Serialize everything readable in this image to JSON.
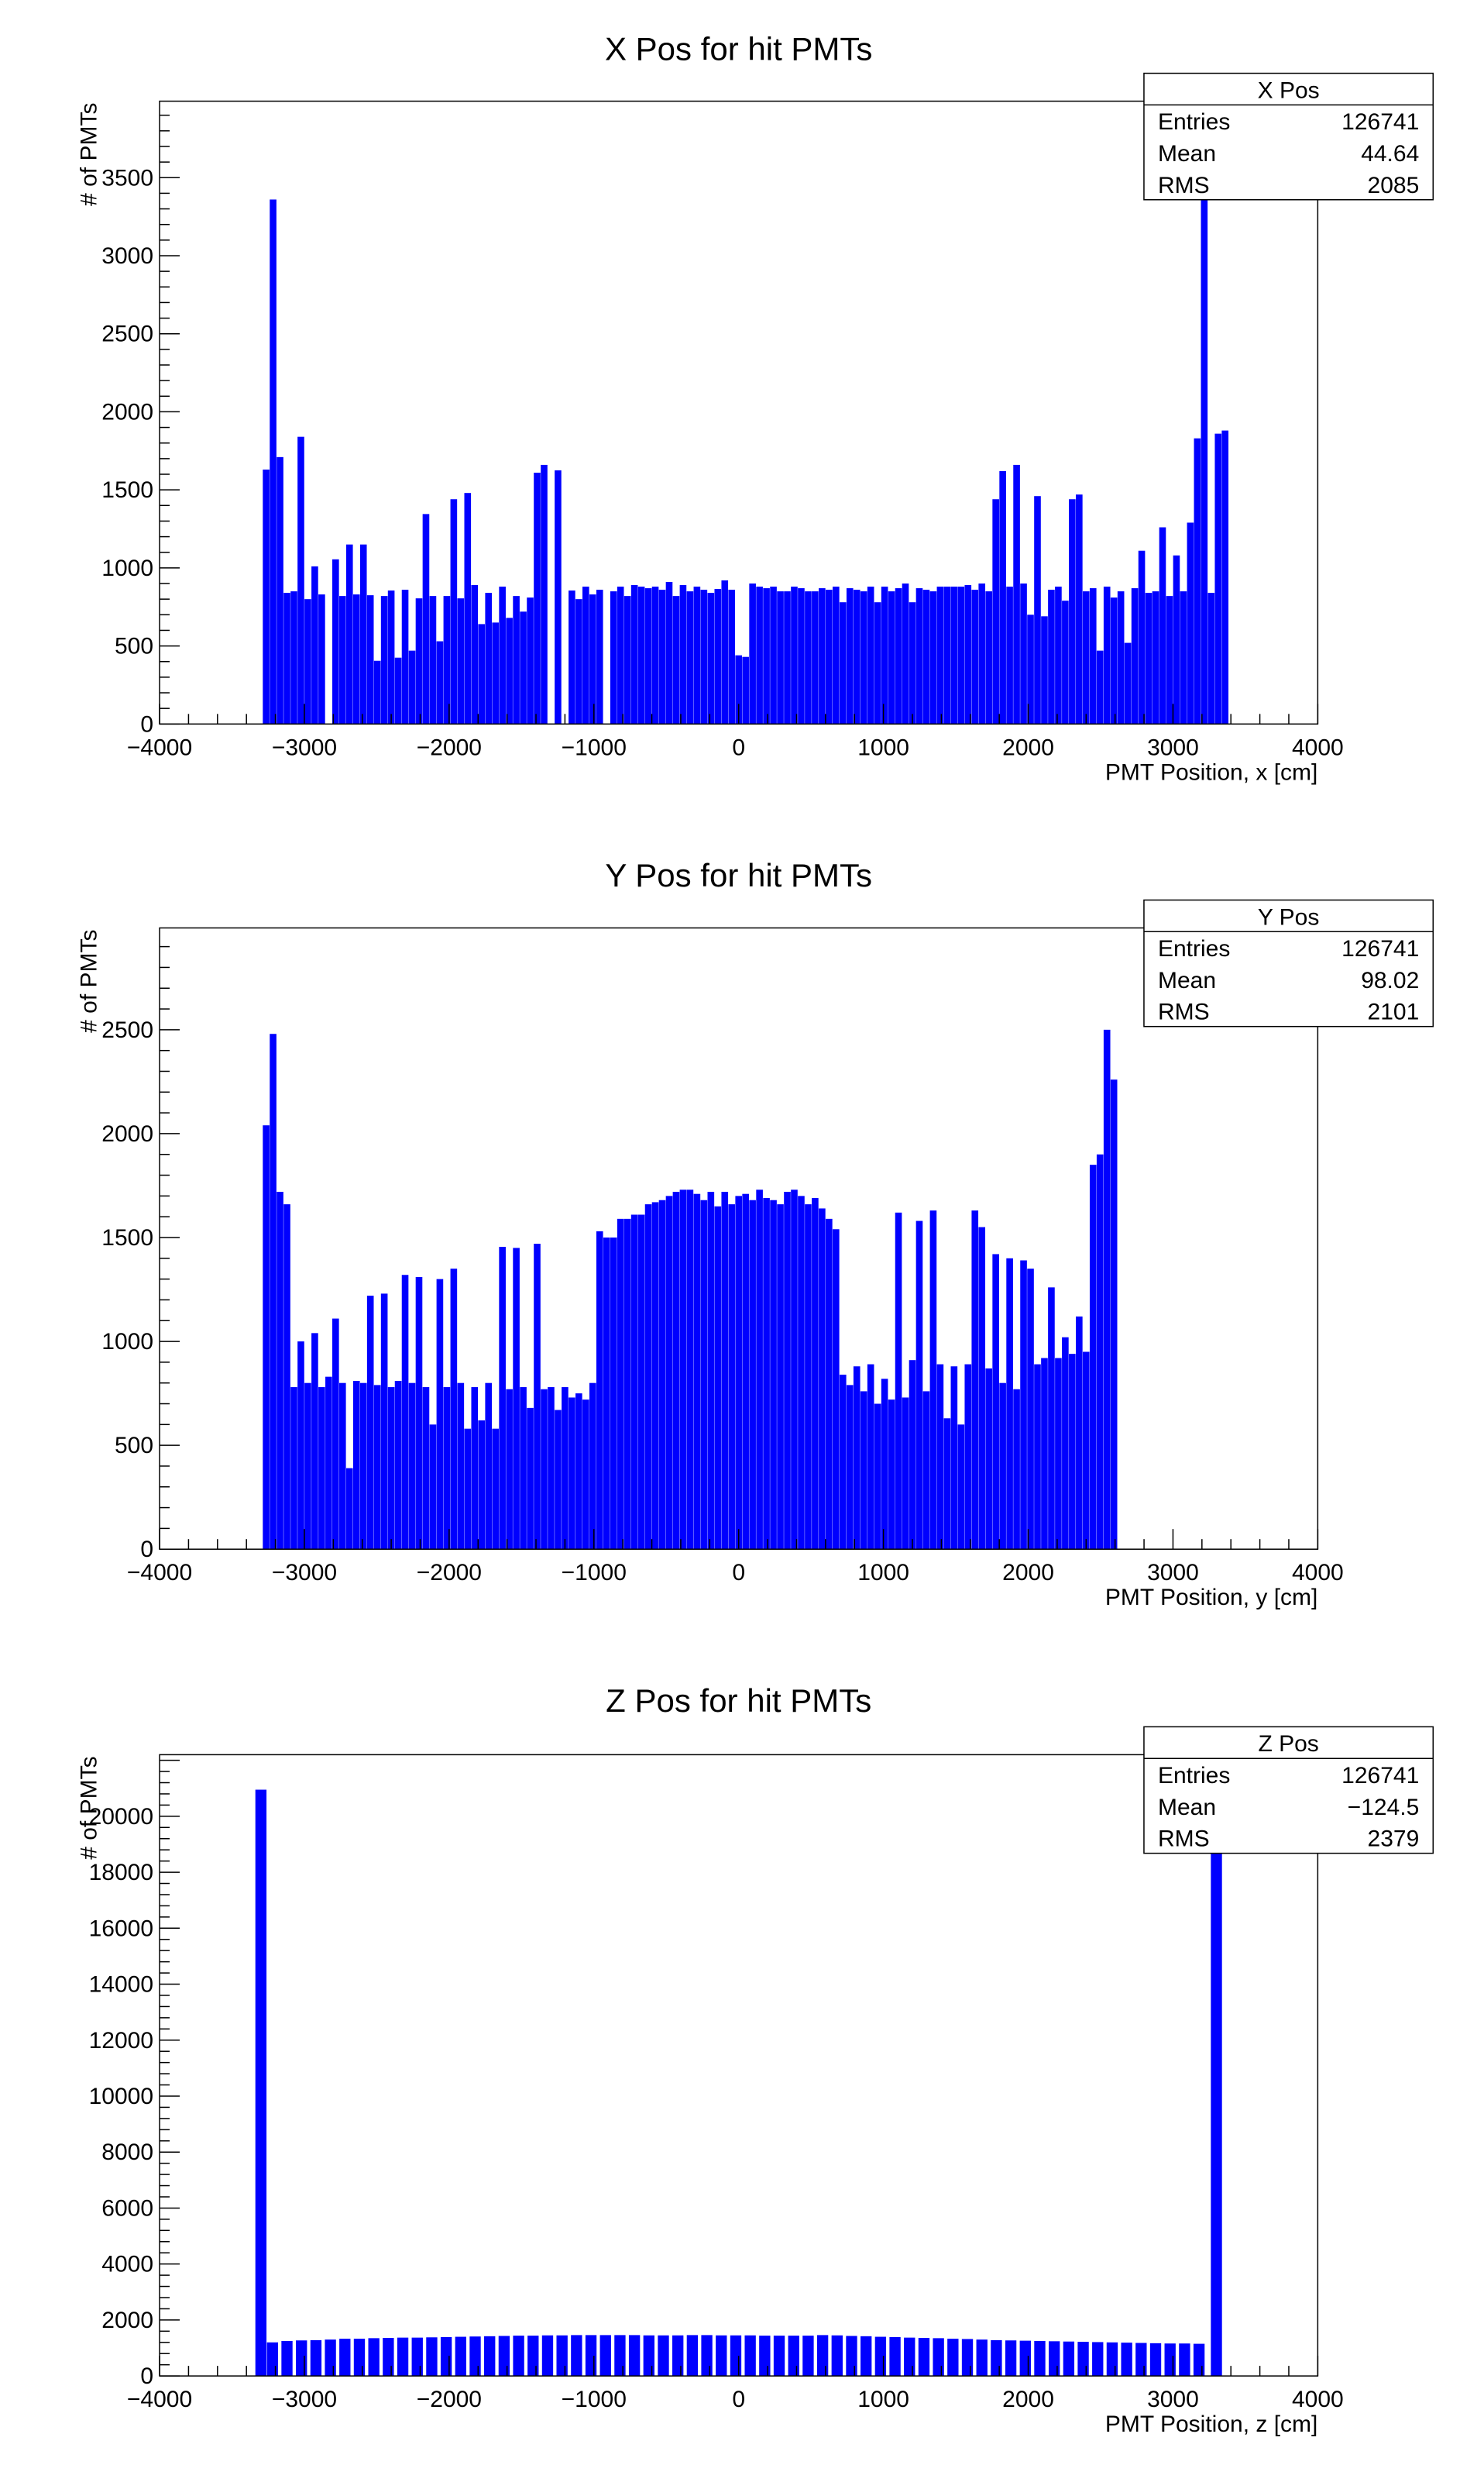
{
  "chart_data": [
    {
      "type": "bar",
      "title": "X Pos for hit PMTs",
      "xlabel": "PMT Position, x [cm]",
      "ylabel": "# of PMTs",
      "xlim": [
        -4000,
        4000
      ],
      "ylim": [
        0,
        3990
      ],
      "xticks": [
        -4000,
        -3000,
        -2000,
        -1000,
        0,
        1000,
        2000,
        3000,
        4000
      ],
      "yticks": [
        0,
        500,
        1000,
        1500,
        2000,
        2500,
        3000,
        3500
      ],
      "color": "#0000ff",
      "stats": {
        "name": "X Pos",
        "entries": "126741",
        "mean": "44.64",
        "rms": "2085"
      },
      "bins": [
        [
          -3264,
          1630
        ],
        [
          -3216,
          3360
        ],
        [
          -3168,
          1710
        ],
        [
          -3120,
          840
        ],
        [
          -3072,
          850
        ],
        [
          -3024,
          1840
        ],
        [
          -2976,
          800
        ],
        [
          -2928,
          1010
        ],
        [
          -2880,
          830
        ],
        [
          -2784,
          1055
        ],
        [
          -2736,
          820
        ],
        [
          -2688,
          1150
        ],
        [
          -2640,
          830
        ],
        [
          -2592,
          1150
        ],
        [
          -2544,
          825
        ],
        [
          -2496,
          405
        ],
        [
          -2448,
          820
        ],
        [
          -2400,
          855
        ],
        [
          -2352,
          425
        ],
        [
          -2304,
          860
        ],
        [
          -2256,
          470
        ],
        [
          -2208,
          805
        ],
        [
          -2160,
          1345
        ],
        [
          -2112,
          820
        ],
        [
          -2064,
          530
        ],
        [
          -2016,
          820
        ],
        [
          -1968,
          1440
        ],
        [
          -1920,
          805
        ],
        [
          -1872,
          1480
        ],
        [
          -1824,
          890
        ],
        [
          -1776,
          640
        ],
        [
          -1728,
          840
        ],
        [
          -1680,
          650
        ],
        [
          -1632,
          880
        ],
        [
          -1584,
          680
        ],
        [
          -1536,
          820
        ],
        [
          -1488,
          720
        ],
        [
          -1440,
          810
        ],
        [
          -1392,
          1610
        ],
        [
          -1344,
          1660
        ],
        [
          -1248,
          1625
        ],
        [
          -1152,
          855
        ],
        [
          -1104,
          800
        ],
        [
          -1056,
          880
        ],
        [
          -1008,
          830
        ],
        [
          -960,
          860
        ],
        [
          -864,
          850
        ],
        [
          -816,
          880
        ],
        [
          -768,
          820
        ],
        [
          -720,
          890
        ],
        [
          -672,
          880
        ],
        [
          -624,
          870
        ],
        [
          -576,
          880
        ],
        [
          -528,
          860
        ],
        [
          -480,
          910
        ],
        [
          -432,
          820
        ],
        [
          -384,
          890
        ],
        [
          -336,
          850
        ],
        [
          -288,
          880
        ],
        [
          -240,
          860
        ],
        [
          -192,
          840
        ],
        [
          -144,
          865
        ],
        [
          -96,
          920
        ],
        [
          -48,
          860
        ],
        [
          0,
          440
        ],
        [
          48,
          430
        ],
        [
          96,
          900
        ],
        [
          144,
          880
        ],
        [
          192,
          870
        ],
        [
          240,
          880
        ],
        [
          288,
          850
        ],
        [
          336,
          850
        ],
        [
          384,
          880
        ],
        [
          432,
          870
        ],
        [
          480,
          850
        ],
        [
          528,
          850
        ],
        [
          576,
          870
        ],
        [
          624,
          860
        ],
        [
          672,
          880
        ],
        [
          720,
          780
        ],
        [
          768,
          870
        ],
        [
          816,
          860
        ],
        [
          864,
          850
        ],
        [
          912,
          880
        ],
        [
          960,
          780
        ],
        [
          1008,
          880
        ],
        [
          1056,
          850
        ],
        [
          1104,
          870
        ],
        [
          1152,
          900
        ],
        [
          1200,
          780
        ],
        [
          1248,
          870
        ],
        [
          1296,
          860
        ],
        [
          1344,
          850
        ],
        [
          1392,
          880
        ],
        [
          1440,
          880
        ],
        [
          1488,
          880
        ],
        [
          1536,
          880
        ],
        [
          1584,
          890
        ],
        [
          1632,
          860
        ],
        [
          1680,
          900
        ],
        [
          1728,
          850
        ],
        [
          1776,
          1440
        ],
        [
          1824,
          1620
        ],
        [
          1872,
          880
        ],
        [
          1920,
          1660
        ],
        [
          1968,
          900
        ],
        [
          2016,
          700
        ],
        [
          2064,
          1460
        ],
        [
          2112,
          690
        ],
        [
          2160,
          860
        ],
        [
          2208,
          880
        ],
        [
          2256,
          790
        ],
        [
          2304,
          1440
        ],
        [
          2352,
          1470
        ],
        [
          2400,
          850
        ],
        [
          2448,
          870
        ],
        [
          2496,
          470
        ],
        [
          2544,
          880
        ],
        [
          2592,
          810
        ],
        [
          2640,
          850
        ],
        [
          2688,
          520
        ],
        [
          2736,
          870
        ],
        [
          2784,
          1110
        ],
        [
          2832,
          840
        ],
        [
          2880,
          850
        ],
        [
          2928,
          1260
        ],
        [
          2976,
          820
        ],
        [
          3024,
          1080
        ],
        [
          3072,
          850
        ],
        [
          3120,
          1290
        ],
        [
          3168,
          1830
        ],
        [
          3216,
          3380
        ],
        [
          3264,
          840
        ],
        [
          3312,
          1860
        ],
        [
          3360,
          1880
        ]
      ]
    },
    {
      "type": "bar",
      "title": "Y Pos for hit PMTs",
      "xlabel": "PMT Position, y [cm]",
      "ylabel": "# of PMTs",
      "xlim": [
        -4000,
        4000
      ],
      "ylim": [
        0,
        2990
      ],
      "xticks": [
        -4000,
        -3000,
        -2000,
        -1000,
        0,
        1000,
        2000,
        3000,
        4000
      ],
      "yticks": [
        0,
        500,
        1000,
        1500,
        2000,
        2500
      ],
      "color": "#0000ff",
      "stats": {
        "name": "Y Pos",
        "entries": "126741",
        "mean": "98.02",
        "rms": "2101"
      },
      "bins": [
        [
          -3264,
          2040
        ],
        [
          -3216,
          2480
        ],
        [
          -3168,
          1720
        ],
        [
          -3120,
          1660
        ],
        [
          -3072,
          780
        ],
        [
          -3024,
          1000
        ],
        [
          -2976,
          800
        ],
        [
          -2928,
          1040
        ],
        [
          -2880,
          780
        ],
        [
          -2832,
          830
        ],
        [
          -2784,
          1110
        ],
        [
          -2736,
          800
        ],
        [
          -2688,
          390
        ],
        [
          -2640,
          810
        ],
        [
          -2592,
          800
        ],
        [
          -2544,
          1220
        ],
        [
          -2496,
          790
        ],
        [
          -2448,
          1230
        ],
        [
          -2400,
          780
        ],
        [
          -2352,
          810
        ],
        [
          -2304,
          1320
        ],
        [
          -2256,
          800
        ],
        [
          -2208,
          1310
        ],
        [
          -2160,
          780
        ],
        [
          -2112,
          600
        ],
        [
          -2064,
          1300
        ],
        [
          -2016,
          780
        ],
        [
          -1968,
          1350
        ],
        [
          -1920,
          800
        ],
        [
          -1872,
          580
        ],
        [
          -1824,
          780
        ],
        [
          -1776,
          620
        ],
        [
          -1728,
          800
        ],
        [
          -1680,
          580
        ],
        [
          -1632,
          1455
        ],
        [
          -1584,
          770
        ],
        [
          -1536,
          1450
        ],
        [
          -1488,
          780
        ],
        [
          -1440,
          680
        ],
        [
          -1392,
          1470
        ],
        [
          -1344,
          770
        ],
        [
          -1296,
          780
        ],
        [
          -1248,
          670
        ],
        [
          -1200,
          780
        ],
        [
          -1152,
          730
        ],
        [
          -1104,
          750
        ],
        [
          -1056,
          720
        ],
        [
          -1008,
          800
        ],
        [
          -960,
          1530
        ],
        [
          -912,
          1500
        ],
        [
          -864,
          1500
        ],
        [
          -816,
          1590
        ],
        [
          -768,
          1590
        ],
        [
          -720,
          1610
        ],
        [
          -672,
          1610
        ],
        [
          -624,
          1660
        ],
        [
          -576,
          1670
        ],
        [
          -528,
          1680
        ],
        [
          -480,
          1700
        ],
        [
          -432,
          1720
        ],
        [
          -384,
          1730
        ],
        [
          -336,
          1730
        ],
        [
          -288,
          1710
        ],
        [
          -240,
          1680
        ],
        [
          -192,
          1720
        ],
        [
          -144,
          1650
        ],
        [
          -96,
          1720
        ],
        [
          -48,
          1660
        ],
        [
          0,
          1700
        ],
        [
          48,
          1710
        ],
        [
          96,
          1680
        ],
        [
          144,
          1730
        ],
        [
          192,
          1690
        ],
        [
          240,
          1680
        ],
        [
          288,
          1660
        ],
        [
          336,
          1720
        ],
        [
          384,
          1730
        ],
        [
          432,
          1700
        ],
        [
          480,
          1660
        ],
        [
          528,
          1690
        ],
        [
          576,
          1640
        ],
        [
          624,
          1590
        ],
        [
          672,
          1540
        ],
        [
          720,
          840
        ],
        [
          768,
          790
        ],
        [
          816,
          880
        ],
        [
          864,
          760
        ],
        [
          912,
          890
        ],
        [
          960,
          700
        ],
        [
          1008,
          820
        ],
        [
          1056,
          720
        ],
        [
          1104,
          1620
        ],
        [
          1152,
          730
        ],
        [
          1200,
          910
        ],
        [
          1248,
          1580
        ],
        [
          1296,
          760
        ],
        [
          1344,
          1630
        ],
        [
          1392,
          890
        ],
        [
          1440,
          630
        ],
        [
          1488,
          880
        ],
        [
          1536,
          600
        ],
        [
          1584,
          890
        ],
        [
          1632,
          1630
        ],
        [
          1680,
          1550
        ],
        [
          1728,
          870
        ],
        [
          1776,
          1420
        ],
        [
          1824,
          800
        ],
        [
          1872,
          1400
        ],
        [
          1920,
          770
        ],
        [
          1968,
          1390
        ],
        [
          2016,
          1350
        ],
        [
          2064,
          890
        ],
        [
          2112,
          920
        ],
        [
          2160,
          1260
        ],
        [
          2208,
          920
        ],
        [
          2256,
          1020
        ],
        [
          2304,
          940
        ],
        [
          2352,
          1120
        ],
        [
          2400,
          950
        ],
        [
          2448,
          1850
        ],
        [
          2496,
          1900
        ],
        [
          2544,
          2500
        ],
        [
          2592,
          2260
        ]
      ]
    },
    {
      "type": "bar",
      "title": "Z Pos for hit PMTs",
      "xlabel": "PMT Position, z [cm]",
      "ylabel": "# of PMTs",
      "xlim": [
        -4000,
        4000
      ],
      "ylim": [
        0,
        22200
      ],
      "xticks": [
        -4000,
        -3000,
        -2000,
        -1000,
        0,
        1000,
        2000,
        3000,
        4000
      ],
      "yticks": [
        0,
        2000,
        4000,
        6000,
        8000,
        10000,
        12000,
        14000,
        16000,
        18000,
        20000
      ],
      "color": "#0000ff",
      "stats": {
        "name": "Z Pos",
        "entries": "126741",
        "mean": "−124.5",
        "rms": "2379"
      },
      "bins": [
        [
          -3300,
          20950
        ],
        [
          -3220,
          1200
        ],
        [
          -3120,
          1250
        ],
        [
          -3020,
          1270
        ],
        [
          -2920,
          1280
        ],
        [
          -2820,
          1300
        ],
        [
          -2720,
          1330
        ],
        [
          -2620,
          1330
        ],
        [
          -2520,
          1350
        ],
        [
          -2420,
          1360
        ],
        [
          -2320,
          1370
        ],
        [
          -2220,
          1370
        ],
        [
          -2120,
          1380
        ],
        [
          -2020,
          1390
        ],
        [
          -1920,
          1400
        ],
        [
          -1820,
          1410
        ],
        [
          -1720,
          1420
        ],
        [
          -1620,
          1430
        ],
        [
          -1520,
          1440
        ],
        [
          -1420,
          1440
        ],
        [
          -1320,
          1450
        ],
        [
          -1220,
          1450
        ],
        [
          -1120,
          1460
        ],
        [
          -1020,
          1460
        ],
        [
          -920,
          1460
        ],
        [
          -820,
          1460
        ],
        [
          -720,
          1460
        ],
        [
          -620,
          1450
        ],
        [
          -520,
          1450
        ],
        [
          -420,
          1450
        ],
        [
          -320,
          1460
        ],
        [
          -220,
          1460
        ],
        [
          -120,
          1450
        ],
        [
          -20,
          1450
        ],
        [
          80,
          1450
        ],
        [
          180,
          1440
        ],
        [
          280,
          1440
        ],
        [
          380,
          1440
        ],
        [
          480,
          1440
        ],
        [
          580,
          1460
        ],
        [
          680,
          1450
        ],
        [
          780,
          1430
        ],
        [
          880,
          1420
        ],
        [
          980,
          1400
        ],
        [
          1080,
          1390
        ],
        [
          1180,
          1370
        ],
        [
          1280,
          1360
        ],
        [
          1380,
          1350
        ],
        [
          1480,
          1330
        ],
        [
          1580,
          1320
        ],
        [
          1680,
          1300
        ],
        [
          1780,
          1280
        ],
        [
          1880,
          1270
        ],
        [
          1980,
          1260
        ],
        [
          2080,
          1250
        ],
        [
          2180,
          1240
        ],
        [
          2280,
          1230
        ],
        [
          2380,
          1220
        ],
        [
          2480,
          1210
        ],
        [
          2580,
          1200
        ],
        [
          2680,
          1190
        ],
        [
          2780,
          1180
        ],
        [
          2880,
          1170
        ],
        [
          2980,
          1160
        ],
        [
          3080,
          1160
        ],
        [
          3180,
          1150
        ],
        [
          3300,
          18700
        ]
      ]
    }
  ]
}
